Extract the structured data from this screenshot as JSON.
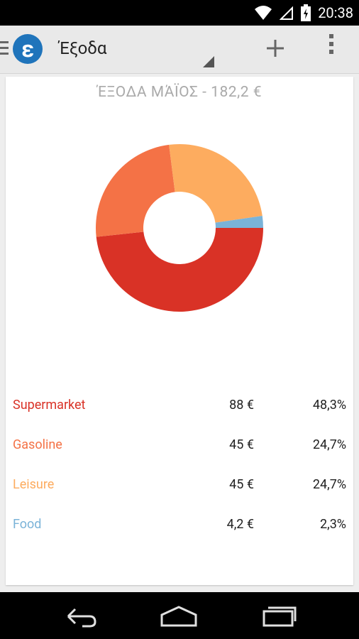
{
  "status": {
    "time": "20:38"
  },
  "actionbar": {
    "logo_letter": "ε",
    "title": "Έξοδα",
    "add_icon": "plus-icon",
    "overflow_icon": "overflow-menu-icon"
  },
  "chart_data": {
    "type": "pie",
    "title": "ΈΞΟΔΑ ΜΆΪΟΣ - 182,2 €",
    "donut": true,
    "categories": [
      "Supermarket",
      "Gasoline",
      "Leisure",
      "Food"
    ],
    "values": [
      88,
      45,
      45,
      4.2
    ],
    "percentages": [
      "48,3%",
      "24,7%",
      "24,7%",
      "2,3%"
    ],
    "colors": [
      "#d93226",
      "#f47246",
      "#fdac5f",
      "#7ab3d8"
    ]
  },
  "legend": [
    {
      "label": "Supermarket",
      "amount": "88 €",
      "percent": "48,3%",
      "color": "#d93226"
    },
    {
      "label": "Gasoline",
      "amount": "45 €",
      "percent": "24,7%",
      "color": "#f47246"
    },
    {
      "label": "Leisure",
      "amount": "45 €",
      "percent": "24,7%",
      "color": "#fdac5f"
    },
    {
      "label": "Food",
      "amount": "4,2 €",
      "percent": "2,3%",
      "color": "#7ab3d8"
    }
  ],
  "navbar": {
    "back_icon": "back-icon",
    "home_icon": "home-icon",
    "recents_icon": "recent-apps-icon"
  }
}
